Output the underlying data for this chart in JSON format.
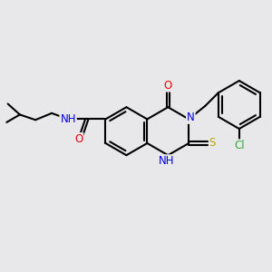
{
  "bg_color": "#e8e8eb",
  "bond_color": "#000000",
  "bond_width": 1.5,
  "atom_colors": {
    "N": "#0000ee",
    "O": "#ee0000",
    "S": "#bbaa00",
    "Cl": "#33aa33",
    "NH": "#0000ee",
    "NH2": "#0000ee"
  },
  "font_size": 8.5,
  "fig_size": [
    3.0,
    3.0
  ],
  "dpi": 100
}
